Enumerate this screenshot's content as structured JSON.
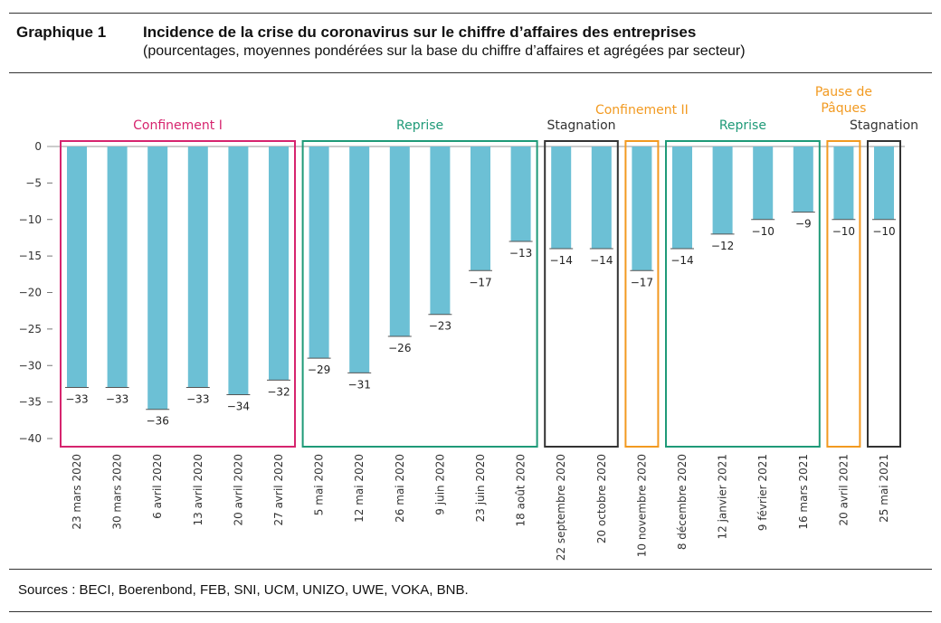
{
  "figure": {
    "label": "Graphique 1",
    "title": "Incidence de la crise du coronavirus sur le chiffre d’affaires des entreprises",
    "subtitle": "(pourcentages, moyennes pondérées sur la base du chiffre d’affaires et agrégées par secteur)",
    "source": "Sources : BECI, Boerenbond, FEB, SNI, UCM, UNIZO, UWE, VOKA, BNB."
  },
  "chart_data": {
    "type": "bar",
    "categories": [
      "23 mars 2020",
      "30 mars 2020",
      "6 avril 2020",
      "13 avril 2020",
      "20 avril 2020",
      "27 avril 2020",
      "5 mai 2020",
      "12 mai 2020",
      "26 mai 2020",
      "9 juin 2020",
      "23 juin 2020",
      "18 août 2020",
      "22 septembre 2020",
      "20 octobre 2020",
      "10 novembre 2020",
      "8 décembre 2020",
      "12 janvier 2021",
      "9 février 2021",
      "16 mars 2021",
      "20 avril 2021",
      "25 mai 2021"
    ],
    "values": [
      -33,
      -33,
      -36,
      -33,
      -34,
      -32,
      -29,
      -31,
      -26,
      -23,
      -17,
      -13,
      -14,
      -14,
      -17,
      -14,
      -12,
      -10,
      -9,
      -10,
      -10
    ],
    "data_labels": [
      "−33",
      "−33",
      "−36",
      "−33",
      "−34",
      "−32",
      "−29",
      "−31",
      "−26",
      "−23",
      "−17",
      "−13",
      "−14",
      "−14",
      "−17",
      "−14",
      "−12",
      "−10",
      "−9",
      "−10",
      "−10"
    ],
    "ylim": [
      -40,
      0
    ],
    "yticks": [
      0,
      -5,
      -10,
      -15,
      -20,
      -25,
      -30,
      -35,
      -40
    ],
    "ytick_labels": [
      "0",
      "−5",
      "−10",
      "−15",
      "−20",
      "−25",
      "−30",
      "−35",
      "−40"
    ],
    "bar_color": "#6cc0d5",
    "grid": false,
    "phases": [
      {
        "label": "Confinement I",
        "start": 0,
        "end": 5,
        "color": "#d6246e"
      },
      {
        "label": "Reprise",
        "start": 6,
        "end": 11,
        "color": "#1f9a78"
      },
      {
        "label": "Stagnation",
        "start": 12,
        "end": 13,
        "color": "#333333"
      },
      {
        "label": "Confinement II",
        "start": 14,
        "end": 14,
        "color": "#f29a21"
      },
      {
        "label": "Reprise",
        "start": 15,
        "end": 18,
        "color": "#1f9a78"
      },
      {
        "label": "Pause de Pâques",
        "start": 19,
        "end": 19,
        "color": "#f29a21"
      },
      {
        "label": "Stagnation",
        "start": 20,
        "end": 20,
        "color": "#333333"
      }
    ]
  }
}
